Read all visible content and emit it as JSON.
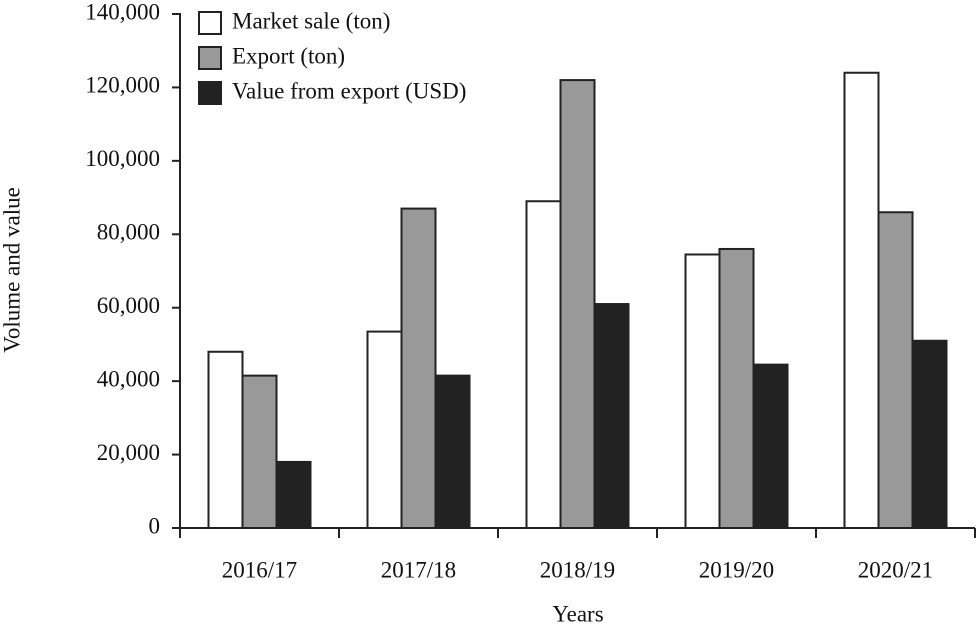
{
  "chart_data": {
    "type": "bar",
    "x_label": "Years",
    "y_label": "Volume and value",
    "categories": [
      "2016/17",
      "2017/18",
      "2018/19",
      "2019/20",
      "2020/21"
    ],
    "series": [
      {
        "name": "Market sale (ton)",
        "color": "#ffffff",
        "values": [
          48000,
          53500,
          89000,
          74500,
          124000
        ]
      },
      {
        "name": "Export (ton)",
        "color": "#999999",
        "values": [
          41500,
          87000,
          122000,
          76000,
          86000
        ]
      },
      {
        "name": "Value from export (USD)",
        "color": "#222222",
        "values": [
          18000,
          41500,
          61000,
          44500,
          51000
        ]
      }
    ],
    "ylim": [
      0,
      140000
    ],
    "yticks": [
      0,
      {
        "value": 20000,
        "label": "20,000"
      },
      {
        "value": 40000,
        "label": "40,000"
      },
      {
        "value": 60000,
        "label": "60,000"
      },
      {
        "value": 80000,
        "label": "80,000"
      },
      {
        "value": 100000,
        "label": "100,000"
      },
      {
        "value": 120000,
        "label": "120,000"
      },
      {
        "value": 140000,
        "label": "140,000"
      }
    ],
    "legend": "upper-left",
    "grid": false
  }
}
